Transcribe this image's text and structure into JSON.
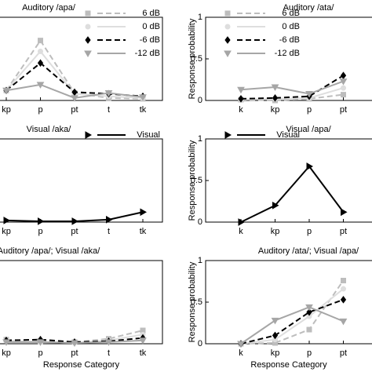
{
  "chart_data": [
    {
      "type": "line",
      "title": "Auditory /apa/",
      "categories": [
        "kp",
        "p",
        "pt",
        "t",
        "tk"
      ],
      "ylim": [
        0,
        1
      ],
      "legend": "upper right",
      "series": [
        {
          "name": "6 dB",
          "color": "#bdbdbd",
          "dash": true,
          "marker": "square",
          "values": [
            0.12,
            0.72,
            0.09,
            0.03,
            0.02
          ]
        },
        {
          "name": "0 dB",
          "color": "#dedede",
          "dash": false,
          "marker": "circle",
          "values": [
            0.12,
            0.59,
            0.08,
            0.05,
            0.03
          ]
        },
        {
          "name": "-6 dB",
          "color": "#000000",
          "dash": true,
          "marker": "diamond",
          "values": [
            0.12,
            0.45,
            0.1,
            0.08,
            0.05
          ]
        },
        {
          "name": "-12 dB",
          "color": "#a6a6a6",
          "dash": false,
          "marker": "triangle-down",
          "values": [
            0.12,
            0.19,
            0.03,
            0.09,
            0.04
          ]
        }
      ]
    },
    {
      "type": "line",
      "title": "Auditory /ata/",
      "ylabel": "Response probability",
      "categories": [
        "k",
        "kp",
        "p",
        "pt"
      ],
      "ylim": [
        0,
        1
      ],
      "yticks": [
        0,
        0.5,
        1
      ],
      "legend": "upper right",
      "series": [
        {
          "name": "6 dB",
          "color": "#bdbdbd",
          "dash": true,
          "marker": "square",
          "values": [
            0.01,
            0.0,
            0.02,
            0.07
          ]
        },
        {
          "name": "0 dB",
          "color": "#dedede",
          "dash": false,
          "marker": "circle",
          "values": [
            0.01,
            0.02,
            0.03,
            0.15
          ]
        },
        {
          "name": "-6 dB",
          "color": "#000000",
          "dash": true,
          "marker": "diamond",
          "values": [
            0.02,
            0.03,
            0.05,
            0.3
          ]
        },
        {
          "name": "-12 dB",
          "color": "#a6a6a6",
          "dash": false,
          "marker": "triangle-down",
          "values": [
            0.13,
            0.16,
            0.08,
            0.23
          ]
        }
      ]
    },
    {
      "type": "line",
      "title": "Visual /aka/",
      "categories": [
        "kp",
        "p",
        "pt",
        "t",
        "tk"
      ],
      "ylim": [
        0,
        1
      ],
      "legend": "upper right",
      "series": [
        {
          "name": "Visual",
          "color": "#000000",
          "dash": false,
          "marker": "triangle-right",
          "values": [
            0.02,
            0.01,
            0.01,
            0.03,
            0.12
          ]
        }
      ]
    },
    {
      "type": "line",
      "title": "Visual /apa/",
      "ylabel": "Response probability",
      "categories": [
        "k",
        "kp",
        "p",
        "pt"
      ],
      "ylim": [
        0,
        1
      ],
      "yticks": [
        0,
        0.5,
        1
      ],
      "legend": "upper right",
      "series": [
        {
          "name": "Visual",
          "color": "#000000",
          "dash": false,
          "marker": "triangle-right",
          "values": [
            0.0,
            0.2,
            0.67,
            0.12
          ]
        }
      ]
    },
    {
      "type": "line",
      "title": "Auditory /apa/; Visual /aka/",
      "xlabel": "Response Category",
      "categories": [
        "kp",
        "p",
        "pt",
        "t",
        "tk"
      ],
      "ylim": [
        0,
        1
      ],
      "series": [
        {
          "color": "#bdbdbd",
          "dash": true,
          "marker": "square",
          "values": [
            0.05,
            0.03,
            0.02,
            0.06,
            0.16
          ]
        },
        {
          "color": "#dedede",
          "dash": false,
          "marker": "circle",
          "values": [
            0.04,
            0.02,
            0.01,
            0.04,
            0.11
          ]
        },
        {
          "color": "#000000",
          "dash": true,
          "marker": "diamond",
          "values": [
            0.04,
            0.05,
            0.02,
            0.03,
            0.07
          ]
        },
        {
          "color": "#a6a6a6",
          "dash": false,
          "marker": "triangle-down",
          "values": [
            0.02,
            0.02,
            0.01,
            0.02,
            0.04
          ]
        }
      ]
    },
    {
      "type": "line",
      "title": "Auditory /ata/; Visual /apa/",
      "xlabel": "Response Category",
      "ylabel": "Response probability",
      "categories": [
        "k",
        "kp",
        "p",
        "pt"
      ],
      "ylim": [
        0,
        1
      ],
      "yticks": [
        0,
        0.5,
        1
      ],
      "series": [
        {
          "color": "#bdbdbd",
          "dash": true,
          "marker": "square",
          "values": [
            0.0,
            0.01,
            0.17,
            0.76
          ]
        },
        {
          "color": "#dedede",
          "dash": false,
          "marker": "circle",
          "values": [
            0.0,
            0.05,
            0.33,
            0.66
          ]
        },
        {
          "color": "#000000",
          "dash": true,
          "marker": "diamond",
          "values": [
            0.0,
            0.1,
            0.38,
            0.53
          ]
        },
        {
          "color": "#a6a6a6",
          "dash": false,
          "marker": "triangle-down",
          "values": [
            0.0,
            0.28,
            0.44,
            0.27
          ]
        }
      ]
    }
  ]
}
